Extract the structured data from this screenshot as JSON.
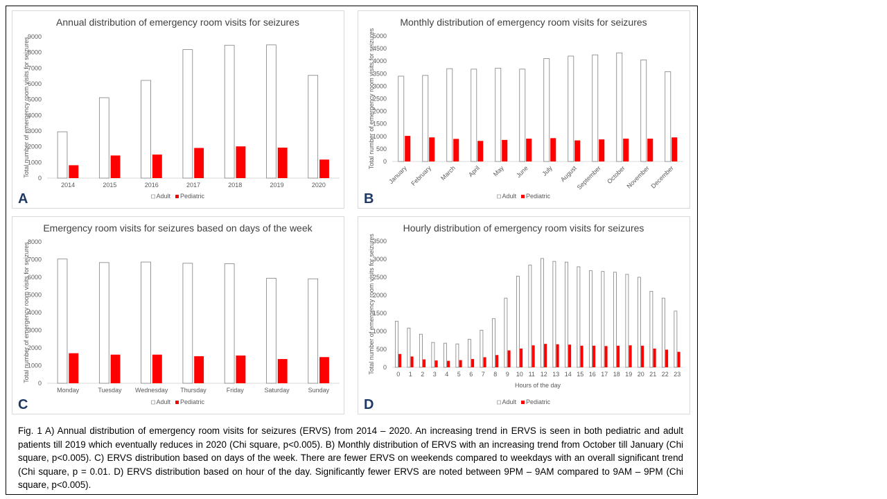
{
  "chart_data": [
    {
      "type": "bar",
      "panel_label": "A",
      "title": "Annual distribution of emergency room visits for seizures",
      "y_label": "Total number of emergency room visits for seizures",
      "categories": [
        "2014",
        "2015",
        "2016",
        "2017",
        "2018",
        "2019",
        "2020"
      ],
      "series": [
        {
          "name": "Adult",
          "color": "#ffffff",
          "values": [
            2950,
            5120,
            6220,
            8180,
            8460,
            8480,
            6540
          ]
        },
        {
          "name": "Pediatric",
          "color": "#ff0000",
          "values": [
            820,
            1440,
            1500,
            1920,
            2020,
            1940,
            1180
          ]
        }
      ],
      "ylim": [
        0,
        9000
      ],
      "yticks": [
        0,
        1000,
        2000,
        3000,
        4000,
        5000,
        6000,
        7000,
        8000,
        9000
      ],
      "grid": false
    },
    {
      "type": "bar",
      "panel_label": "B",
      "title": "Monthly distribution of emergency room visits for seizures",
      "y_label": "Total number of emergency room visits for seizures",
      "categories": [
        "January",
        "February",
        "March",
        "April",
        "May",
        "June",
        "July",
        "August",
        "September",
        "October",
        "November",
        "December"
      ],
      "series": [
        {
          "name": "Adult",
          "color": "#ffffff",
          "values": [
            3400,
            3430,
            3700,
            3680,
            3720,
            3680,
            4100,
            4200,
            4250,
            4330,
            4050,
            3580
          ]
        },
        {
          "name": "Pediatric",
          "color": "#ff0000",
          "values": [
            1020,
            960,
            900,
            820,
            860,
            910,
            930,
            840,
            880,
            910,
            910,
            960
          ]
        }
      ],
      "ylim": [
        0,
        5000
      ],
      "yticks": [
        0,
        500,
        1000,
        1500,
        2000,
        2500,
        3000,
        3500,
        4000,
        4500,
        5000
      ],
      "grid": false
    },
    {
      "type": "bar",
      "panel_label": "C",
      "title": "Emergency room visits for seizures based on days of the week",
      "y_label": "Total number of emergency room visits for seizures",
      "categories": [
        "Monday",
        "Tuesday",
        "Wednesday",
        "Thursday",
        "Friday",
        "Saturday",
        "Sunday"
      ],
      "series": [
        {
          "name": "Adult",
          "color": "#ffffff",
          "values": [
            7030,
            6830,
            6860,
            6790,
            6760,
            5940,
            5910
          ]
        },
        {
          "name": "Pediatric",
          "color": "#ff0000",
          "values": [
            1700,
            1620,
            1620,
            1530,
            1570,
            1370,
            1480
          ]
        }
      ],
      "ylim": [
        0,
        8000
      ],
      "yticks": [
        0,
        1000,
        2000,
        3000,
        4000,
        5000,
        6000,
        7000,
        8000
      ],
      "grid": false
    },
    {
      "type": "bar",
      "panel_label": "D",
      "title": "Hourly distribution of emergency room visits for seizures",
      "y_label": "Total number of emergency room visits for seizures",
      "x_label": "Hours of the day",
      "categories": [
        "0",
        "1",
        "2",
        "3",
        "4",
        "5",
        "6",
        "7",
        "8",
        "9",
        "10",
        "11",
        "12",
        "13",
        "14",
        "15",
        "16",
        "17",
        "18",
        "19",
        "20",
        "21",
        "22",
        "23"
      ],
      "series": [
        {
          "name": "Adult",
          "color": "#ffffff",
          "values": [
            1280,
            1090,
            920,
            690,
            670,
            650,
            780,
            1030,
            1350,
            1920,
            2530,
            2840,
            3020,
            2940,
            2920,
            2790,
            2680,
            2660,
            2640,
            2580,
            2500,
            2110,
            1920,
            1560
          ]
        },
        {
          "name": "Pediatric",
          "color": "#ff0000",
          "values": [
            370,
            300,
            220,
            190,
            180,
            200,
            230,
            280,
            340,
            470,
            520,
            610,
            650,
            640,
            630,
            600,
            600,
            590,
            600,
            610,
            600,
            520,
            490,
            430
          ]
        }
      ],
      "ylim": [
        0,
        3500
      ],
      "yticks": [
        0,
        500,
        1000,
        1500,
        2000,
        2500,
        3000,
        3500
      ],
      "grid": false
    }
  ],
  "caption": "Fig. 1 A) Annual distribution of emergency room visits for seizures (ERVS) from 2014 – 2020. An increasing trend in ERVS is seen in both pediatric and adult patients till 2019 which eventually reduces in 2020 (Chi square, p<0.005). B) Monthly distribution of ERVS with an increasing trend from October till January (Chi square, p<0.005). C) ERVS distribution based on days of the week. There are fewer ERVS on weekends compared to weekdays with an overall significant trend (Chi square, p = 0.01. D) ERVS distribution based on hour of the day. Significantly fewer ERVS are noted between 9PM – 9AM compared to 9AM – 9PM (Chi square, p<0.005)."
}
